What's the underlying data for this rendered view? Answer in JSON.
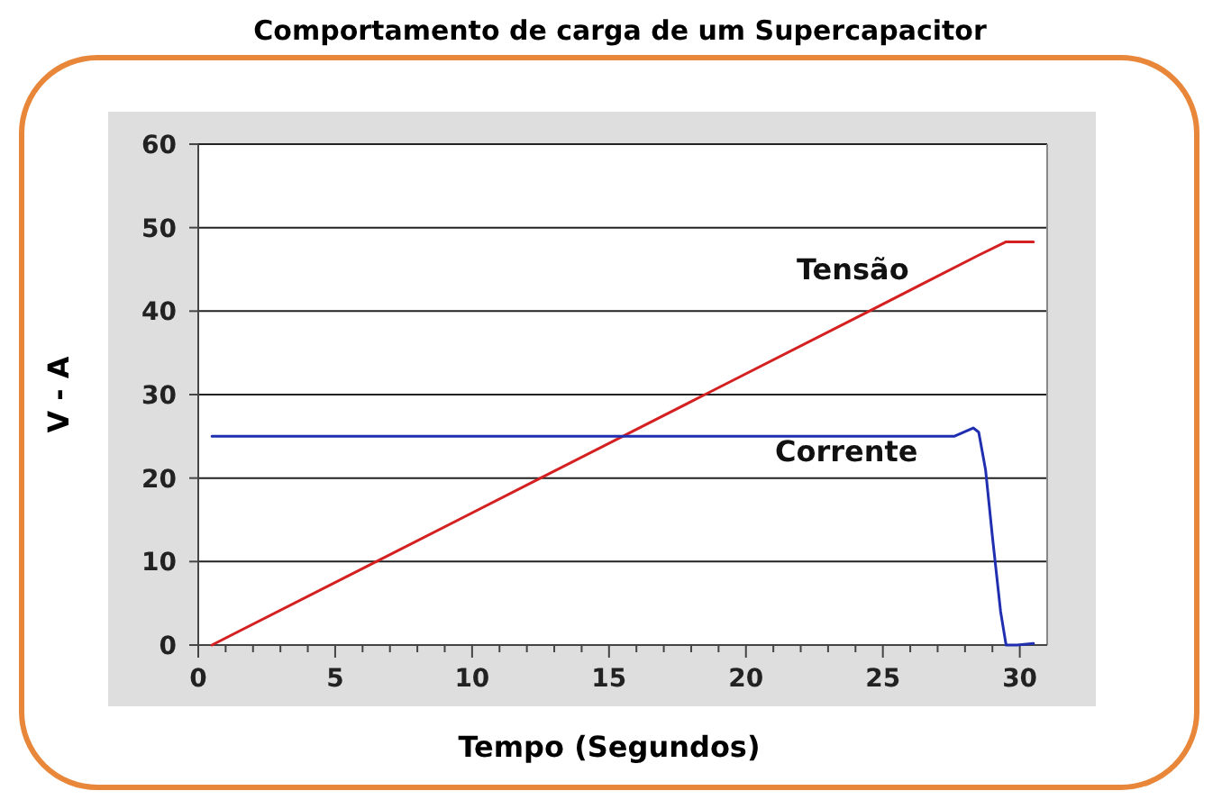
{
  "chart_data": {
    "type": "line",
    "title": "Comportamento de carga de um Supercapacitor",
    "xlabel": "Tempo (Segundos)",
    "ylabel": "V - A",
    "xlim": [
      0,
      31
    ],
    "ylim": [
      0,
      60
    ],
    "xticks": [
      0,
      {
        "value": 1,
        "label": null
      },
      {
        "value": 2,
        "label": null
      },
      {
        "value": 3,
        "label": null
      },
      {
        "value": 4,
        "label": null
      },
      5,
      {
        "value": 6,
        "label": null
      },
      {
        "value": 7,
        "label": null
      },
      {
        "value": 8,
        "label": null
      },
      {
        "value": 9,
        "label": null
      },
      10,
      {
        "value": 11,
        "label": null
      },
      {
        "value": 12,
        "label": null
      },
      {
        "value": 13,
        "label": null
      },
      {
        "value": 14,
        "label": null
      },
      15,
      {
        "value": 16,
        "label": null
      },
      {
        "value": 17,
        "label": null
      },
      {
        "value": 18,
        "label": null
      },
      {
        "value": 19,
        "label": null
      },
      20,
      {
        "value": 21,
        "label": null
      },
      {
        "value": 22,
        "label": null
      },
      {
        "value": 23,
        "label": null
      },
      {
        "value": 24,
        "label": null
      },
      25,
      {
        "value": 26,
        "label": null
      },
      {
        "value": 27,
        "label": null
      },
      {
        "value": 28,
        "label": null
      },
      {
        "value": 29,
        "label": null
      },
      30
    ],
    "yticks": [
      0,
      10,
      20,
      30,
      40,
      50,
      60
    ],
    "grid": "y",
    "marker": "none",
    "line_style": "solid",
    "series": [
      {
        "name": "Tensão",
        "color": "#d42020",
        "x": [
          0.5,
          6.5,
          12.5,
          18.5,
          24.5,
          28.5,
          29.5,
          30.5
        ],
        "values": [
          0,
          10,
          20,
          30,
          40,
          46.7,
          48.3,
          48.3
        ]
      },
      {
        "name": "Corrente",
        "color": "#1f2fb0",
        "x": [
          0.5,
          27.6,
          28.3,
          28.5,
          28.75,
          29,
          29.3,
          29.5,
          29.9,
          30.5
        ],
        "values": [
          25,
          25,
          26,
          25.5,
          21,
          13,
          4,
          0,
          0,
          0.2
        ]
      }
    ]
  }
}
